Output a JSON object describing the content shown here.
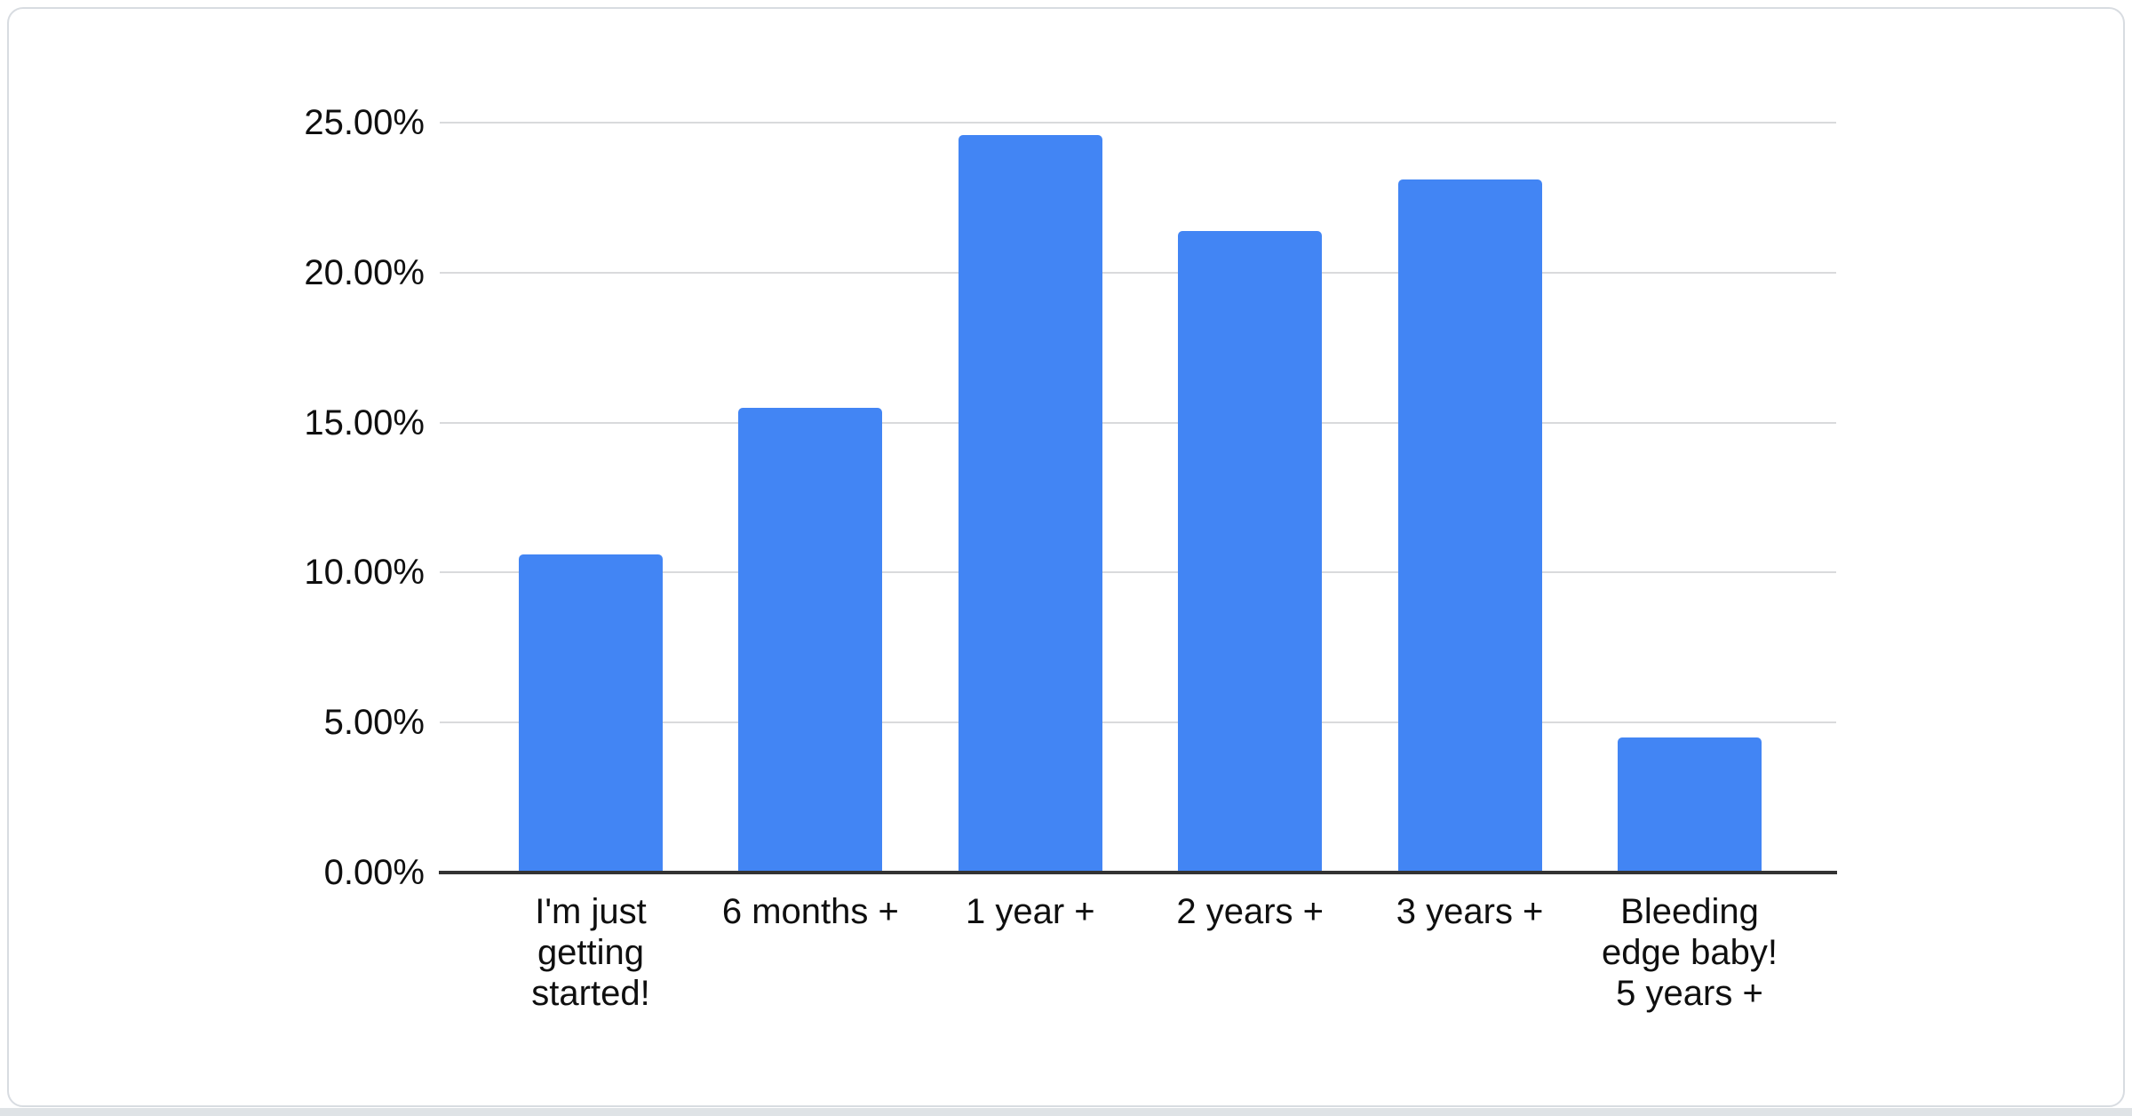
{
  "page": {
    "background": "#ffffff",
    "card_border_color": "#d8dce1",
    "bottom_strip_color": "#dfe3e6"
  },
  "chart_data": {
    "type": "bar",
    "title": "",
    "xlabel": "",
    "ylabel": "",
    "categories": [
      "I'm just getting started!",
      "6 months +",
      "1 year +",
      "2 years +",
      "3 years +",
      "Bleeding edge baby! 5 years +"
    ],
    "category_lines": [
      [
        "I'm just",
        "getting",
        "started!"
      ],
      [
        "6 months +"
      ],
      [
        "1 year +"
      ],
      [
        "2 years +"
      ],
      [
        "3 years +"
      ],
      [
        "Bleeding",
        "edge baby!",
        "5 years +"
      ]
    ],
    "values": [
      10.6,
      15.5,
      24.6,
      21.4,
      23.1,
      4.5
    ],
    "value_unit": "%",
    "ylim": [
      0,
      25
    ],
    "y_tick_values": [
      0,
      5,
      10,
      15,
      20,
      25
    ],
    "y_ticks": [
      "0.00%",
      "5.00%",
      "10.00%",
      "15.00%",
      "20.00%",
      "25.00%"
    ],
    "grid": true,
    "legend": "none",
    "bar_color": "#4285f4",
    "gridline_color": "#d9dadc",
    "axis_line_color": "#333333",
    "label_color": "#0f0f0f"
  }
}
